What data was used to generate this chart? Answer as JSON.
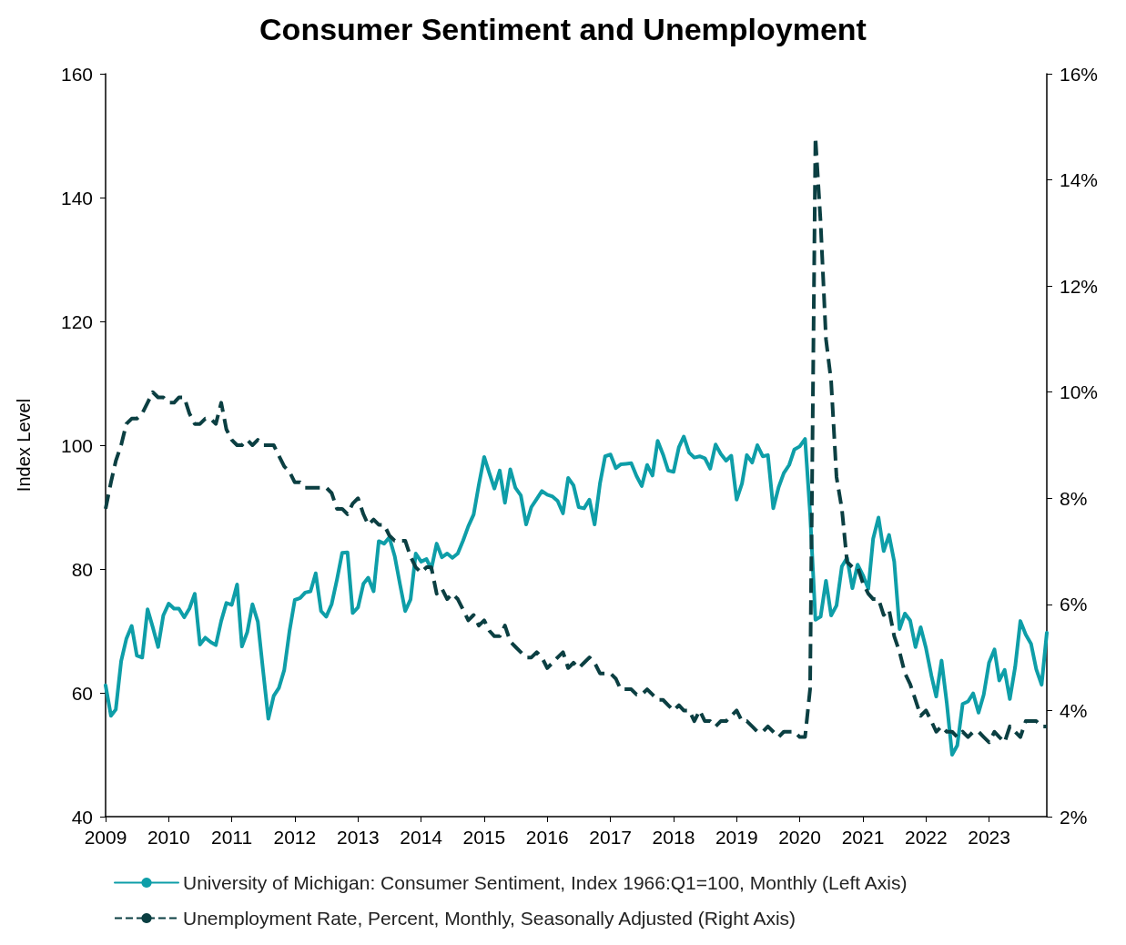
{
  "chart_data": {
    "type": "line",
    "title": "Consumer Sentiment and Unemployment",
    "ylabel": "Index Level",
    "x": [
      "2009-01",
      "2009-02",
      "2009-03",
      "2009-04",
      "2009-05",
      "2009-06",
      "2009-07",
      "2009-08",
      "2009-09",
      "2009-10",
      "2009-11",
      "2009-12",
      "2010-01",
      "2010-02",
      "2010-03",
      "2010-04",
      "2010-05",
      "2010-06",
      "2010-07",
      "2010-08",
      "2010-09",
      "2010-10",
      "2010-11",
      "2010-12",
      "2011-01",
      "2011-02",
      "2011-03",
      "2011-04",
      "2011-05",
      "2011-06",
      "2011-07",
      "2011-08",
      "2011-09",
      "2011-10",
      "2011-11",
      "2011-12",
      "2012-01",
      "2012-02",
      "2012-03",
      "2012-04",
      "2012-05",
      "2012-06",
      "2012-07",
      "2012-08",
      "2012-09",
      "2012-10",
      "2012-11",
      "2012-12",
      "2013-01",
      "2013-02",
      "2013-03",
      "2013-04",
      "2013-05",
      "2013-06",
      "2013-07",
      "2013-08",
      "2013-09",
      "2013-10",
      "2013-11",
      "2013-12",
      "2014-01",
      "2014-02",
      "2014-03",
      "2014-04",
      "2014-05",
      "2014-06",
      "2014-07",
      "2014-08",
      "2014-09",
      "2014-10",
      "2014-11",
      "2014-12",
      "2015-01",
      "2015-02",
      "2015-03",
      "2015-04",
      "2015-05",
      "2015-06",
      "2015-07",
      "2015-08",
      "2015-09",
      "2015-10",
      "2015-11",
      "2015-12",
      "2016-01",
      "2016-02",
      "2016-03",
      "2016-04",
      "2016-05",
      "2016-06",
      "2016-07",
      "2016-08",
      "2016-09",
      "2016-10",
      "2016-11",
      "2016-12",
      "2017-01",
      "2017-02",
      "2017-03",
      "2017-04",
      "2017-05",
      "2017-06",
      "2017-07",
      "2017-08",
      "2017-09",
      "2017-10",
      "2017-11",
      "2017-12",
      "2018-01",
      "2018-02",
      "2018-03",
      "2018-04",
      "2018-05",
      "2018-06",
      "2018-07",
      "2018-08",
      "2018-09",
      "2018-10",
      "2018-11",
      "2018-12",
      "2019-01",
      "2019-02",
      "2019-03",
      "2019-04",
      "2019-05",
      "2019-06",
      "2019-07",
      "2019-08",
      "2019-09",
      "2019-10",
      "2019-11",
      "2019-12",
      "2020-01",
      "2020-02",
      "2020-03",
      "2020-04",
      "2020-05",
      "2020-06",
      "2020-07",
      "2020-08",
      "2020-09",
      "2020-10",
      "2020-11",
      "2020-12",
      "2021-01",
      "2021-02",
      "2021-03",
      "2021-04",
      "2021-05",
      "2021-06",
      "2021-07",
      "2021-08",
      "2021-09",
      "2021-10",
      "2021-11",
      "2021-12",
      "2022-01",
      "2022-02",
      "2022-03",
      "2022-04",
      "2022-05",
      "2022-06",
      "2022-07",
      "2022-08",
      "2022-09",
      "2022-10",
      "2022-11",
      "2022-12",
      "2023-01",
      "2023-02",
      "2023-03",
      "2023-04",
      "2023-05",
      "2023-06",
      "2023-07",
      "2023-08",
      "2023-09",
      "2023-10",
      "2023-11",
      "2023-12"
    ],
    "series": [
      {
        "name": "University of Michigan: Consumer Sentiment, Index 1966:Q1=100, Monthly (Left Axis)",
        "color": "#0e9ea8",
        "line_style": "solid",
        "values": [
          61.2,
          56.3,
          57.3,
          65.1,
          68.7,
          70.8,
          66.0,
          65.7,
          73.5,
          70.6,
          67.4,
          72.5,
          74.4,
          73.6,
          73.6,
          72.2,
          73.6,
          76.0,
          67.8,
          68.9,
          68.2,
          67.7,
          71.6,
          74.5,
          74.2,
          77.5,
          67.5,
          69.8,
          74.3,
          71.5,
          63.7,
          55.8,
          59.5,
          60.8,
          63.7,
          69.9,
          75.0,
          75.3,
          76.2,
          76.4,
          79.3,
          73.2,
          72.3,
          74.3,
          78.3,
          82.6,
          82.7,
          72.9,
          73.8,
          77.6,
          78.6,
          76.4,
          84.5,
          84.1,
          85.1,
          82.1,
          77.5,
          73.2,
          75.1,
          82.5,
          81.2,
          81.6,
          80.0,
          84.1,
          81.9,
          82.5,
          81.8,
          82.5,
          84.6,
          86.9,
          88.8,
          93.6,
          98.1,
          95.4,
          93.0,
          95.9,
          90.7,
          96.1,
          93.1,
          91.9,
          87.2,
          90.0,
          91.3,
          92.6,
          92.0,
          91.7,
          91.0,
          89.0,
          94.7,
          93.5,
          90.0,
          89.8,
          91.2,
          87.2,
          93.8,
          98.2,
          98.5,
          96.3,
          96.9,
          97.0,
          97.1,
          95.0,
          93.4,
          96.8,
          95.1,
          100.7,
          98.5,
          95.9,
          95.7,
          99.7,
          101.4,
          98.8,
          98.0,
          98.2,
          97.9,
          96.2,
          100.1,
          98.6,
          97.5,
          98.3,
          91.2,
          93.8,
          98.4,
          97.2,
          100.0,
          98.2,
          98.4,
          89.8,
          93.2,
          95.5,
          96.8,
          99.3,
          99.8,
          101.0,
          89.1,
          71.8,
          72.3,
          78.1,
          72.5,
          74.1,
          80.4,
          81.8,
          76.9,
          80.7,
          79.0,
          76.8,
          84.9,
          88.3,
          82.9,
          85.5,
          81.2,
          70.3,
          72.8,
          71.7,
          67.4,
          70.6,
          67.2,
          62.8,
          59.4,
          65.2,
          58.4,
          50.0,
          51.5,
          58.2,
          58.6,
          59.9,
          56.8,
          59.7,
          64.9,
          67.0,
          62.0,
          63.7,
          59.0,
          64.2,
          71.6,
          69.4,
          67.9,
          63.8,
          61.3,
          69.7
        ]
      },
      {
        "name": "Unemployment Rate, Percent, Monthly, Seasonally Adjusted (Right Axis)",
        "color": "#0b3f42",
        "line_style": "dashed",
        "axis": "y2",
        "values": [
          7.8,
          8.3,
          8.7,
          9.0,
          9.4,
          9.5,
          9.5,
          9.6,
          9.8,
          10.0,
          9.9,
          9.9,
          9.8,
          9.8,
          9.9,
          9.9,
          9.6,
          9.4,
          9.4,
          9.5,
          9.5,
          9.4,
          9.8,
          9.3,
          9.1,
          9.0,
          9.0,
          9.1,
          9.0,
          9.1,
          9.0,
          9.0,
          9.0,
          8.8,
          8.6,
          8.5,
          8.3,
          8.3,
          8.2,
          8.2,
          8.2,
          8.2,
          8.2,
          8.1,
          7.8,
          7.8,
          7.7,
          7.9,
          8.0,
          7.7,
          7.5,
          7.6,
          7.5,
          7.5,
          7.3,
          7.2,
          7.2,
          7.2,
          6.9,
          6.7,
          6.6,
          6.7,
          6.7,
          6.2,
          6.3,
          6.1,
          6.2,
          6.1,
          5.9,
          5.7,
          5.8,
          5.6,
          5.7,
          5.5,
          5.4,
          5.4,
          5.6,
          5.3,
          5.2,
          5.1,
          5.0,
          5.0,
          5.1,
          5.0,
          4.8,
          4.9,
          5.0,
          5.1,
          4.8,
          4.9,
          4.8,
          4.9,
          5.0,
          4.9,
          4.7,
          4.7,
          4.7,
          4.6,
          4.4,
          4.4,
          4.4,
          4.3,
          4.3,
          4.4,
          4.3,
          4.2,
          4.2,
          4.1,
          4.0,
          4.1,
          4.0,
          4.0,
          3.8,
          4.0,
          3.8,
          3.8,
          3.7,
          3.8,
          3.8,
          3.9,
          4.0,
          3.8,
          3.8,
          3.7,
          3.6,
          3.6,
          3.7,
          3.6,
          3.5,
          3.6,
          3.6,
          3.6,
          3.5,
          3.5,
          4.4,
          14.8,
          13.2,
          11.0,
          10.2,
          8.4,
          7.8,
          6.8,
          6.7,
          6.7,
          6.4,
          6.2,
          6.1,
          6.1,
          5.8,
          5.9,
          5.4,
          5.1,
          4.7,
          4.5,
          4.2,
          3.9,
          4.0,
          3.8,
          3.6,
          3.7,
          3.6,
          3.6,
          3.5,
          3.6,
          3.5,
          3.6,
          3.6,
          3.5,
          3.4,
          3.6,
          3.5,
          3.4,
          3.7,
          3.6,
          3.5,
          3.8,
          3.8,
          3.8,
          3.7,
          3.7
        ]
      }
    ],
    "xlim": [
      "2009-01",
      "2023-12"
    ],
    "xticks": [
      "2009",
      "2010",
      "2011",
      "2012",
      "2013",
      "2014",
      "2015",
      "2016",
      "2017",
      "2018",
      "2019",
      "2020",
      "2021",
      "2022",
      "2023"
    ],
    "ylim": [
      40,
      160
    ],
    "yticks": [
      40,
      60,
      80,
      100,
      120,
      140,
      160
    ],
    "y2lim": [
      2,
      16
    ],
    "y2ticks": [
      {
        "value": 2,
        "label": "2%"
      },
      {
        "value": 4,
        "label": "4%"
      },
      {
        "value": 6,
        "label": "6%"
      },
      {
        "value": 8,
        "label": "8%"
      },
      {
        "value": 10,
        "label": "10%"
      },
      {
        "value": 12,
        "label": "12%"
      },
      {
        "value": 14,
        "label": "14%"
      },
      {
        "value": 16,
        "label": "16%"
      }
    ],
    "grid": false,
    "legend": "bottom",
    "marker": "none"
  }
}
